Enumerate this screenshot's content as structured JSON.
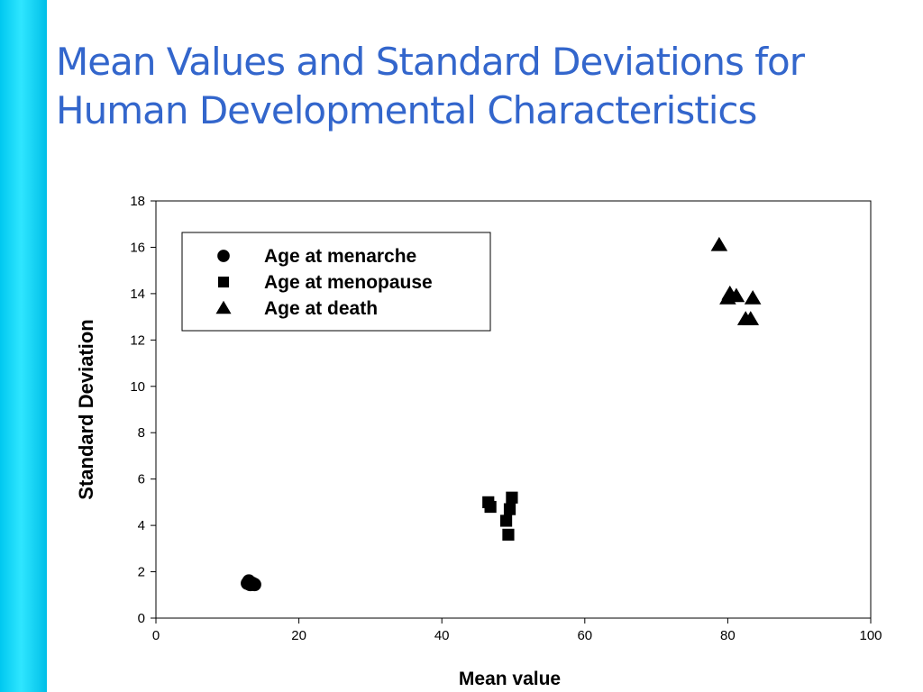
{
  "slide": {
    "accent_color": "#00d4f5",
    "title_color": "#3366cc",
    "title_lines": [
      "Mean Values and Standard Deviations for",
      "Human Developmental Characteristics"
    ]
  },
  "chart_data": {
    "type": "scatter",
    "title": "",
    "xlabel": "Mean value",
    "ylabel": "Standard Deviation",
    "xlim": [
      0,
      100
    ],
    "ylim": [
      0,
      18
    ],
    "xticks": [
      0,
      20,
      40,
      60,
      80,
      100
    ],
    "yticks": [
      0,
      2,
      4,
      6,
      8,
      10,
      12,
      14,
      16,
      18
    ],
    "grid": false,
    "legend_position": "top-left",
    "series": [
      {
        "name": "Age at menarche",
        "marker": "circle",
        "color": "#000000",
        "points": [
          [
            12.8,
            1.5
          ],
          [
            13.0,
            1.6
          ],
          [
            13.2,
            1.45
          ],
          [
            13.5,
            1.5
          ],
          [
            13.8,
            1.45
          ]
        ]
      },
      {
        "name": "Age at menopause",
        "marker": "square",
        "color": "#000000",
        "points": [
          [
            46.5,
            5.0
          ],
          [
            46.8,
            4.8
          ],
          [
            49.0,
            4.2
          ],
          [
            49.3,
            3.6
          ],
          [
            49.5,
            4.7
          ],
          [
            49.8,
            5.2
          ]
        ]
      },
      {
        "name": "Age at death",
        "marker": "triangle",
        "color": "#000000",
        "points": [
          [
            78.8,
            16.1
          ],
          [
            80.0,
            13.8
          ],
          [
            80.3,
            14.0
          ],
          [
            81.2,
            13.9
          ],
          [
            82.5,
            12.9
          ],
          [
            83.2,
            12.9
          ],
          [
            83.5,
            13.8
          ]
        ]
      }
    ]
  }
}
